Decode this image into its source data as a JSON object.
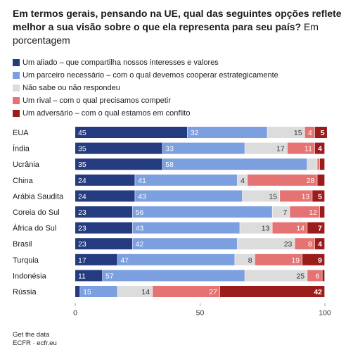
{
  "title_bold": "Em termos gerais, pensando na UE, qual das seguintes opções reflete melhor a sua visão sobre o que ela representa para seu país?",
  "title_regular": "Em porcentagem",
  "footer": {
    "link_label": "Get the data",
    "source": "ECFR · ecfr.eu"
  },
  "chart_data": {
    "type": "bar",
    "orientation": "horizontal",
    "stacked": true,
    "categories": [
      "EUA",
      "Índia",
      "Ucrânia",
      "China",
      "Arábia Saudita",
      "Coreia do Sul",
      "África do Sul",
      "Brasil",
      "Turquia",
      "Indonésia",
      "Rússia"
    ],
    "series": [
      {
        "name": "Um aliado – que compartilha nossos interesses e valores",
        "color": "#243b7f",
        "text_color": "#ffffff",
        "values": [
          45,
          35,
          35,
          24,
          24,
          23,
          23,
          23,
          17,
          11,
          2
        ]
      },
      {
        "name": "Um parceiro necessário – com o qual devemos cooperar estrategicamente",
        "color": "#7c9fe0",
        "text_color": "#ffffff",
        "values": [
          32,
          33,
          58,
          41,
          43,
          56,
          43,
          42,
          47,
          57,
          15
        ]
      },
      {
        "name": "Não sabe ou não respondeu",
        "color": "#dcdcdc",
        "text_color": "#333333",
        "values": [
          15,
          17,
          4,
          4,
          15,
          7,
          13,
          23,
          8,
          25,
          14
        ]
      },
      {
        "name": "Um rival – com o qual precisamos competir",
        "color": "#e57373",
        "text_color": "#ffffff",
        "values": [
          4,
          11,
          1,
          28,
          13,
          12,
          14,
          8,
          19,
          6,
          27
        ]
      },
      {
        "name": "Um adversário – com o qual estamos em conflito",
        "color": "#9b1c1c",
        "text_color": "#ffffff",
        "values": [
          5,
          4,
          2,
          3,
          5,
          2,
          7,
          4,
          9,
          1,
          42
        ]
      }
    ],
    "value_labels": [
      [
        "45",
        "32",
        "15",
        "4",
        "5"
      ],
      [
        "35",
        "33",
        "17",
        "11",
        "4"
      ],
      [
        "35",
        "58",
        "",
        "",
        ""
      ],
      [
        "24",
        "41",
        "4",
        "28",
        ""
      ],
      [
        "24",
        "43",
        "15",
        "13",
        "5"
      ],
      [
        "23",
        "56",
        "7",
        "12",
        ""
      ],
      [
        "23",
        "43",
        "13",
        "14",
        "7"
      ],
      [
        "23",
        "42",
        "23",
        "8",
        "4"
      ],
      [
        "17",
        "47",
        "8",
        "19",
        "9"
      ],
      [
        "11",
        "57",
        "25",
        "6",
        ""
      ],
      [
        "",
        "15",
        "14",
        "27",
        "42"
      ]
    ],
    "xlim": [
      0,
      100
    ],
    "xticks": [
      0,
      50,
      100
    ],
    "grid": false,
    "legend_position": "top"
  }
}
